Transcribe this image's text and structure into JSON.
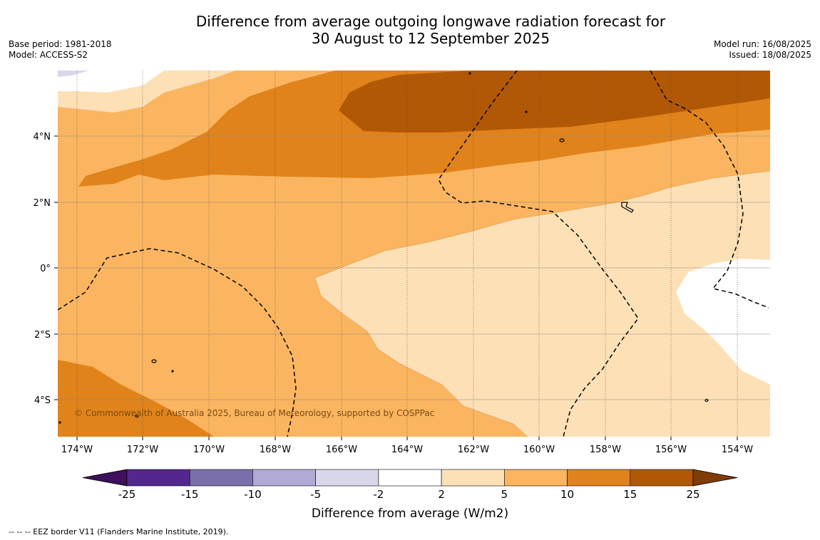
{
  "header": {
    "title_line1": "Difference from average outgoing longwave radiation forecast for",
    "title_line2": "30 August to 12 September 2025",
    "base_period": "Base period: 1981-2018",
    "model": "Model: ACCESS-S2",
    "model_run": "Model run: 16/08/2025",
    "issued": "Issued: 18/08/2025"
  },
  "map": {
    "x_ticks": [
      "174°W",
      "172°W",
      "170°W",
      "168°W",
      "166°W",
      "164°W",
      "162°W",
      "160°W",
      "158°W",
      "156°W",
      "154°W"
    ],
    "y_ticks": [
      "4°N",
      "2°N",
      "0°",
      "2°S",
      "4°S"
    ],
    "copyright": "© Commonwealth of Australia 2025, Bureau of Meteorology, supported by COSPPac"
  },
  "colorbar": {
    "labels": [
      "-25",
      "-15",
      "-10",
      "-5",
      "-2",
      "2",
      "5",
      "10",
      "15",
      "25"
    ],
    "colors": [
      "#3d0f5c",
      "#54278f",
      "#7a6eab",
      "#b1aad6",
      "#d9d7ea",
      "#ffffff",
      "#fde0b6",
      "#fbb560",
      "#e0831a",
      "#b15806",
      "#7f3b08"
    ],
    "title": "Difference from average (W/m2)"
  },
  "footer": {
    "legend_text": "-- -- -- EEZ border V11 (Flanders Marine Institute, 2019)."
  }
}
